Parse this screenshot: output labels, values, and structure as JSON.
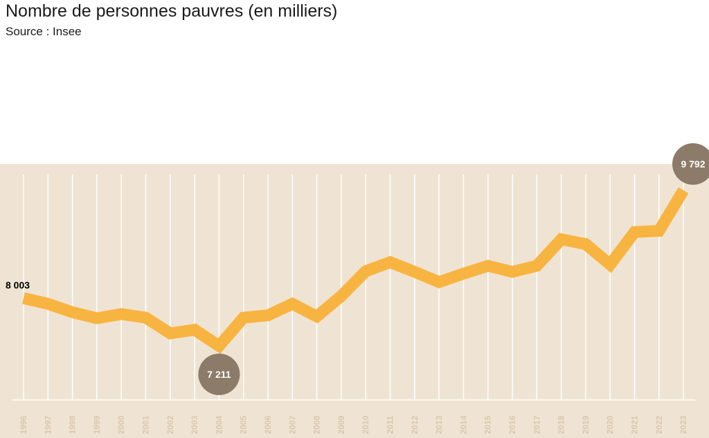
{
  "title": "Nombre de personnes pauvres (en milliers)",
  "subtitle": "Source : Insee",
  "colors": {
    "background": "#efe4d3",
    "line": "#f8b440",
    "badge": "#8d7b69",
    "grid": "#ffffff",
    "tick": "#d8c8b0"
  },
  "chart_data": {
    "type": "line",
    "title": "Nombre de personnes pauvres (en milliers)",
    "subtitle": "Source : Insee",
    "xlabel": "",
    "ylabel": "",
    "grid": true,
    "categories": [
      "1996",
      "1997",
      "1998",
      "1999",
      "2000",
      "2001",
      "2002",
      "2003",
      "2004",
      "2005",
      "2006",
      "2007",
      "2008",
      "2009",
      "2010",
      "2011",
      "2012",
      "2013",
      "2014",
      "2015",
      "2016",
      "2017",
      "2018",
      "2019",
      "2020",
      "2021",
      "2022",
      "2023"
    ],
    "series": [
      {
        "values": [
          8003,
          7910,
          7770,
          7670,
          7740,
          7680,
          7420,
          7480,
          7211,
          7680,
          7720,
          7910,
          7700,
          8040,
          8450,
          8600,
          8440,
          8270,
          8410,
          8540,
          8440,
          8540,
          8980,
          8900,
          8560,
          9100,
          9120,
          9792
        ]
      }
    ],
    "labels": [
      {
        "x": "1996",
        "text": "8 003"
      },
      {
        "x": "2004",
        "text": "7 211"
      },
      {
        "x": "2023",
        "text": "9 792"
      }
    ]
  }
}
